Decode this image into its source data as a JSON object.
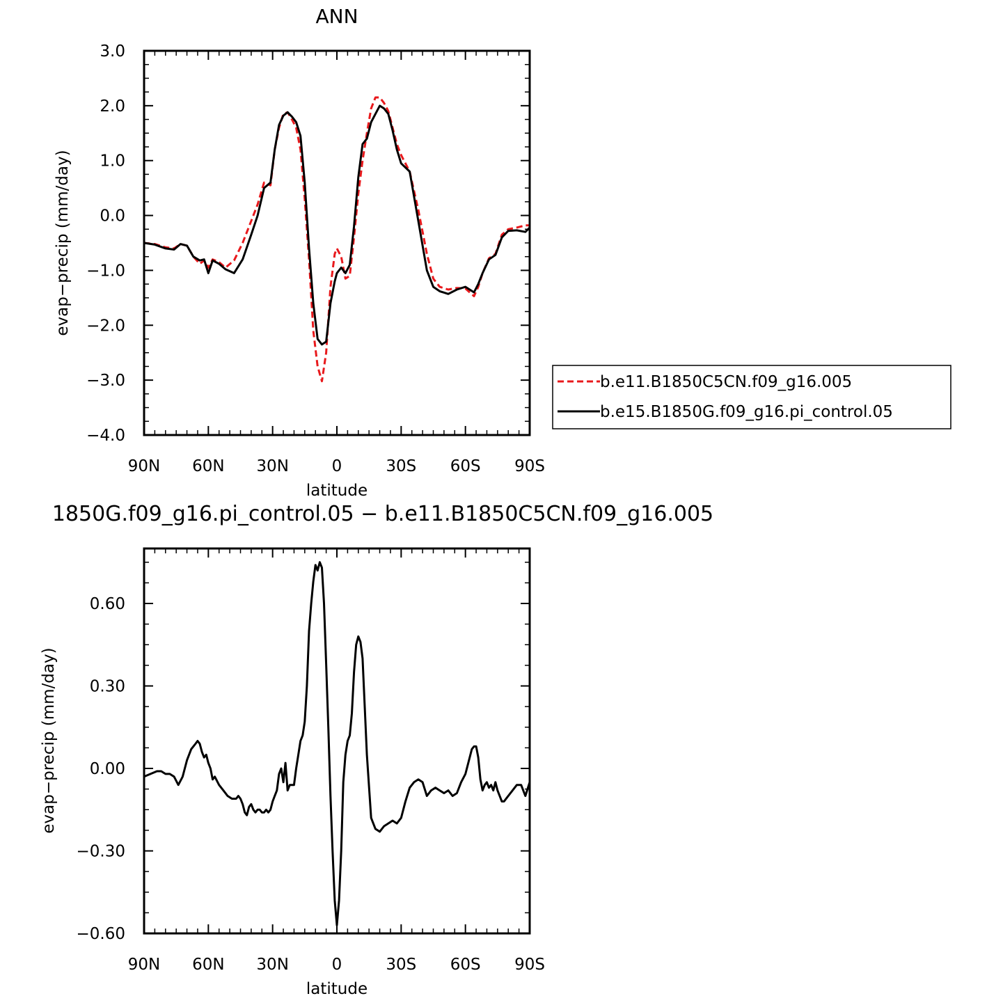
{
  "chart_data": [
    {
      "type": "line",
      "title": "ANN",
      "xlabel": "latitude",
      "ylabel": "evap−precip (mm/day)",
      "xlim": [
        90,
        -90
      ],
      "ylim": [
        -4.0,
        3.0
      ],
      "xticks": [
        90,
        60,
        30,
        0,
        -30,
        -60,
        -90
      ],
      "xtick_labels": [
        "90N",
        "60N",
        "30N",
        "0",
        "30S",
        "60S",
        "90S"
      ],
      "yticks": [
        -4,
        -3,
        -2,
        -1,
        0,
        1,
        2,
        3
      ],
      "ytick_labels": [
        "−4.0",
        "−3.0",
        "−2.0",
        "−1.0",
        "0.0",
        "1.0",
        "2.0",
        "3.0"
      ],
      "legend_position": "right",
      "series": [
        {
          "name": "b.e11.B1850C5CN.f09_g16.005",
          "color": "#e8191c",
          "dash": "dashed",
          "x": [
            90,
            85,
            80,
            76,
            73,
            70,
            67,
            64,
            62,
            60,
            58,
            55,
            52,
            48,
            44,
            40,
            37,
            34,
            31,
            29,
            27,
            25,
            23,
            21,
            19,
            17,
            15,
            13,
            11,
            9,
            7,
            5,
            3,
            1,
            0,
            -2,
            -4,
            -6,
            -8,
            -10,
            -12,
            -14,
            -16,
            -18,
            -20,
            -22,
            -24,
            -26,
            -28,
            -30,
            -34,
            -38,
            -42,
            -45,
            -48,
            -52,
            -56,
            -60,
            -64,
            -66,
            -68,
            -71,
            -74,
            -77,
            -80,
            -84,
            -88,
            -90
          ],
          "y": [
            -0.5,
            -0.52,
            -0.58,
            -0.6,
            -0.52,
            -0.55,
            -0.75,
            -0.88,
            -0.82,
            -0.95,
            -0.8,
            -0.85,
            -0.95,
            -0.82,
            -0.5,
            -0.1,
            0.2,
            0.6,
            0.55,
            1.2,
            1.6,
            1.85,
            1.88,
            1.75,
            1.6,
            1.2,
            0.3,
            -0.8,
            -2.1,
            -2.75,
            -3.02,
            -2.5,
            -1.3,
            -0.7,
            -0.6,
            -0.75,
            -1.15,
            -1.1,
            -0.4,
            0.4,
            1.0,
            1.5,
            1.95,
            2.15,
            2.15,
            2.05,
            1.9,
            1.6,
            1.3,
            1.1,
            0.8,
            0.1,
            -0.7,
            -1.15,
            -1.3,
            -1.35,
            -1.32,
            -1.33,
            -1.47,
            -1.3,
            -1.05,
            -0.78,
            -0.7,
            -0.35,
            -0.25,
            -0.22,
            -0.18,
            -0.18
          ]
        },
        {
          "name": "b.e15.B1850G.f09_g16.pi_control.05",
          "color": "#000000",
          "dash": "solid",
          "x": [
            90,
            85,
            80,
            76,
            73,
            70,
            67,
            64,
            62,
            60,
            58,
            55,
            52,
            48,
            44,
            40,
            37,
            34,
            31,
            29,
            27,
            25,
            23,
            21,
            19,
            17,
            15,
            13,
            11,
            9,
            7,
            5,
            3,
            1,
            0,
            -2,
            -4,
            -6,
            -8,
            -10,
            -12,
            -14,
            -16,
            -18,
            -20,
            -22,
            -24,
            -26,
            -28,
            -30,
            -34,
            -38,
            -42,
            -45,
            -48,
            -52,
            -56,
            -60,
            -64,
            -66,
            -68,
            -71,
            -74,
            -77,
            -80,
            -84,
            -88,
            -90
          ],
          "y": [
            -0.5,
            -0.53,
            -0.6,
            -0.62,
            -0.52,
            -0.55,
            -0.75,
            -0.82,
            -0.8,
            -1.05,
            -0.82,
            -0.88,
            -0.98,
            -1.05,
            -0.8,
            -0.35,
            0.0,
            0.5,
            0.6,
            1.2,
            1.65,
            1.82,
            1.88,
            1.8,
            1.7,
            1.45,
            0.6,
            -0.6,
            -1.6,
            -2.25,
            -2.35,
            -2.3,
            -1.6,
            -1.2,
            -1.05,
            -0.95,
            -1.05,
            -0.9,
            -0.2,
            0.7,
            1.3,
            1.4,
            1.7,
            1.85,
            2.0,
            1.95,
            1.85,
            1.55,
            1.2,
            0.95,
            0.8,
            -0.1,
            -1.0,
            -1.3,
            -1.38,
            -1.43,
            -1.35,
            -1.3,
            -1.4,
            -1.25,
            -1.05,
            -0.8,
            -0.72,
            -0.4,
            -0.28,
            -0.27,
            -0.3,
            -0.22
          ]
        }
      ]
    },
    {
      "type": "line",
      "title": "1850G.f09_g16.pi_control.05 − b.e11.B1850C5CN.f09_g16.005",
      "xlabel": "latitude",
      "ylabel": "evap−precip (mm/day)",
      "xlim": [
        90,
        -90
      ],
      "ylim": [
        -0.6,
        0.8
      ],
      "xticks": [
        90,
        60,
        30,
        0,
        -30,
        -60,
        -90
      ],
      "xtick_labels": [
        "90N",
        "60N",
        "30N",
        "0",
        "30S",
        "60S",
        "90S"
      ],
      "yticks": [
        -0.6,
        -0.3,
        0,
        0.3,
        0.6
      ],
      "ytick_labels": [
        "−0.60",
        "−0.30",
        "0.00",
        "0.30",
        "0.60"
      ],
      "series": [
        {
          "name": "",
          "color": "#000000",
          "dash": "solid",
          "x": [
            90,
            87,
            84,
            82,
            80,
            78,
            76,
            74,
            72,
            70,
            68,
            67,
            66,
            65,
            64,
            63,
            62,
            61,
            60,
            59,
            58,
            57,
            55,
            53,
            51,
            49,
            47,
            46,
            45,
            44,
            43,
            42,
            41,
            40,
            39,
            38,
            37,
            36,
            35,
            34,
            33,
            32,
            31,
            30,
            29,
            28,
            27,
            26,
            25,
            24,
            23,
            22,
            21,
            20,
            19,
            18,
            17,
            16,
            15,
            14,
            13,
            12,
            11,
            10,
            9,
            8,
            7,
            6,
            5,
            4,
            3,
            2,
            1,
            0,
            -1,
            -2,
            -3,
            -4,
            -5,
            -6,
            -7,
            -8,
            -9,
            -10,
            -11,
            -12,
            -14,
            -16,
            -18,
            -20,
            -22,
            -24,
            -26,
            -28,
            -30,
            -32,
            -34,
            -36,
            -38,
            -40,
            -42,
            -44,
            -46,
            -48,
            -50,
            -52,
            -54,
            -56,
            -58,
            -60,
            -62,
            -63,
            -64,
            -65,
            -66,
            -67,
            -68,
            -69,
            -70,
            -71,
            -72,
            -73,
            -74,
            -75,
            -76,
            -77,
            -78,
            -80,
            -82,
            -84,
            -86,
            -88,
            -90
          ],
          "y": [
            -0.03,
            -0.02,
            -0.01,
            -0.01,
            -0.02,
            -0.02,
            -0.03,
            -0.06,
            -0.03,
            0.03,
            0.07,
            0.08,
            0.09,
            0.1,
            0.09,
            0.06,
            0.04,
            0.05,
            0.02,
            0.0,
            -0.04,
            -0.03,
            -0.06,
            -0.08,
            -0.1,
            -0.11,
            -0.11,
            -0.1,
            -0.11,
            -0.13,
            -0.16,
            -0.17,
            -0.14,
            -0.13,
            -0.15,
            -0.16,
            -0.15,
            -0.15,
            -0.16,
            -0.16,
            -0.15,
            -0.16,
            -0.15,
            -0.12,
            -0.1,
            -0.08,
            -0.02,
            0.0,
            -0.05,
            0.02,
            -0.08,
            -0.06,
            -0.06,
            -0.06,
            0.0,
            0.05,
            0.1,
            0.12,
            0.17,
            0.3,
            0.5,
            0.6,
            0.68,
            0.74,
            0.72,
            0.75,
            0.73,
            0.6,
            0.38,
            0.15,
            -0.1,
            -0.3,
            -0.48,
            -0.57,
            -0.48,
            -0.3,
            -0.05,
            0.05,
            0.1,
            0.12,
            0.2,
            0.35,
            0.45,
            0.48,
            0.46,
            0.4,
            0.05,
            -0.18,
            -0.22,
            -0.23,
            -0.21,
            -0.2,
            -0.19,
            -0.2,
            -0.18,
            -0.12,
            -0.07,
            -0.05,
            -0.04,
            -0.05,
            -0.1,
            -0.08,
            -0.07,
            -0.08,
            -0.09,
            -0.08,
            -0.1,
            -0.09,
            -0.05,
            -0.02,
            0.04,
            0.07,
            0.08,
            0.08,
            0.04,
            -0.04,
            -0.08,
            -0.06,
            -0.05,
            -0.07,
            -0.06,
            -0.08,
            -0.05,
            -0.08,
            -0.1,
            -0.12,
            -0.12,
            -0.1,
            -0.08,
            -0.06,
            -0.06,
            -0.1,
            -0.05
          ]
        }
      ]
    }
  ]
}
